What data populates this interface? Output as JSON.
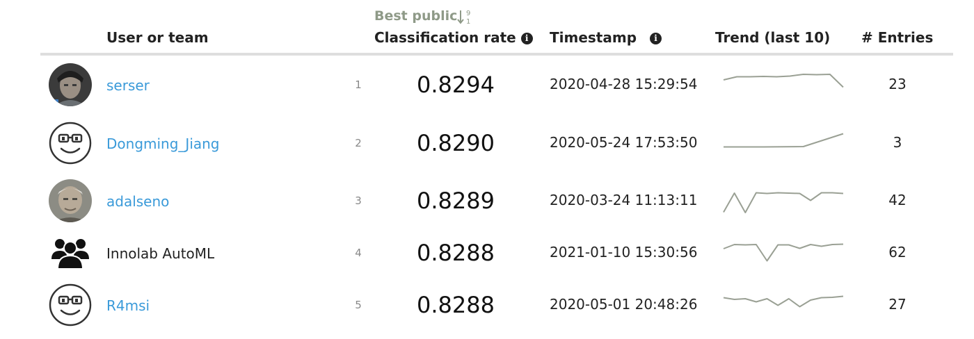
{
  "header": {
    "user_or_team": "User or team",
    "sort_label": "Best public",
    "classification_rate": "Classification rate",
    "timestamp": "Timestamp",
    "trend": "Trend (last 10)",
    "entries": "# Entries"
  },
  "colors": {
    "link": "#3a9ad9",
    "sort_label": "#8f9a88",
    "trend_line": "#9aa094",
    "rule": "#dedede"
  },
  "rows": [
    {
      "avatar_type": "photo",
      "avatar_icon": "user-photo",
      "name": "serser",
      "is_link": true,
      "rank": "1",
      "score": "0.8294",
      "timestamp": "2020-04-28 15:29:54",
      "trend": [
        0.8277,
        0.8286,
        0.8286,
        0.8287,
        0.8286,
        0.8288,
        0.8293,
        0.8292,
        0.8293,
        0.8256
      ],
      "entries": "23"
    },
    {
      "avatar_type": "face",
      "avatar_icon": "glasses-face-icon",
      "name": "Dongming_Jiang",
      "is_link": true,
      "rank": "2",
      "score": "0.8290",
      "timestamp": "2020-05-24 17:53:50",
      "trend": [
        0.8252,
        0.8252,
        0.8253,
        0.829
      ],
      "entries": "3"
    },
    {
      "avatar_type": "photo",
      "avatar_icon": "user-photo",
      "name": "adalseno",
      "is_link": true,
      "rank": "3",
      "score": "0.8289",
      "timestamp": "2020-03-24 11:13:11",
      "trend": [
        0.823,
        0.8285,
        0.8229,
        0.8286,
        0.8284,
        0.8286,
        0.8285,
        0.8284,
        0.8264,
        0.8286,
        0.8286,
        0.8284
      ],
      "entries": "42"
    },
    {
      "avatar_type": "team",
      "avatar_icon": "team-icon",
      "name": "Innolab AutoML",
      "is_link": false,
      "rank": "4",
      "score": "0.8288",
      "timestamp": "2021-01-10 15:30:56",
      "trend": [
        0.8275,
        0.8287,
        0.8286,
        0.8287,
        0.824,
        0.8286,
        0.8286,
        0.8276,
        0.8287,
        0.8282,
        0.8287,
        0.8288
      ],
      "entries": "62"
    },
    {
      "avatar_type": "face",
      "avatar_icon": "glasses-face-icon",
      "name": "R4msi",
      "is_link": true,
      "rank": "5",
      "score": "0.8288",
      "timestamp": "2020-05-01 20:48:26",
      "trend": [
        0.8284,
        0.8279,
        0.8281,
        0.8272,
        0.8281,
        0.8262,
        0.8281,
        0.8258,
        0.8277,
        0.8284,
        0.8285,
        0.8288
      ],
      "entries": "27"
    }
  ]
}
